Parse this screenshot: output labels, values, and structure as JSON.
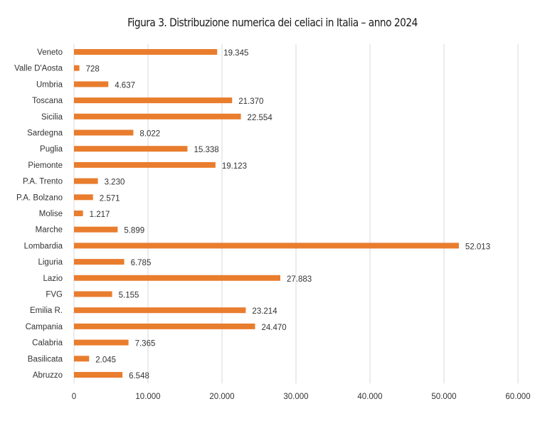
{
  "title": "Figura 3. Distribuzione numerica dei celiaci in Italia – anno 2024",
  "chart_data": {
    "type": "bar",
    "orientation": "horizontal",
    "title": "Figura 3. Distribuzione numerica dei celiaci in Italia – anno 2024",
    "xlabel": "",
    "ylabel": "",
    "xlim": [
      0,
      60000
    ],
    "x_ticks": [
      0,
      10000,
      20000,
      30000,
      40000,
      50000,
      60000
    ],
    "x_tick_labels": [
      "0",
      "10.000",
      "20.000",
      "30.000",
      "40.000",
      "50.000",
      "60.000"
    ],
    "grid": "vertical",
    "legend": "none",
    "bar_color": "#E97D2E",
    "gridline_color": "#D9D9D9",
    "categories": [
      "Veneto",
      "Valle D'Aosta",
      "Umbria",
      "Toscana",
      "Sicilia",
      "Sardegna",
      "Puglia",
      "Piemonte",
      "P.A. Trento",
      "P.A. Bolzano",
      "Molise",
      "Marche",
      "Lombardia",
      "Liguria",
      "Lazio",
      "FVG",
      "Emilia R.",
      "Campania",
      "Calabria",
      "Basilicata",
      "Abruzzo"
    ],
    "values": [
      19345,
      728,
      4637,
      21370,
      22554,
      8022,
      15338,
      19123,
      3230,
      2571,
      1217,
      5899,
      52013,
      6785,
      27883,
      5155,
      23214,
      24470,
      7365,
      2045,
      6548
    ],
    "value_labels": [
      "19.345",
      "728",
      "4.637",
      "21.370",
      "22.554",
      "8.022",
      "15.338",
      "19.123",
      "3.230",
      "2.571",
      "1.217",
      "5.899",
      "52.013",
      "6.785",
      "27.883",
      "5.155",
      "23.214",
      "24.470",
      "7.365",
      "2.045",
      "6.548"
    ]
  }
}
